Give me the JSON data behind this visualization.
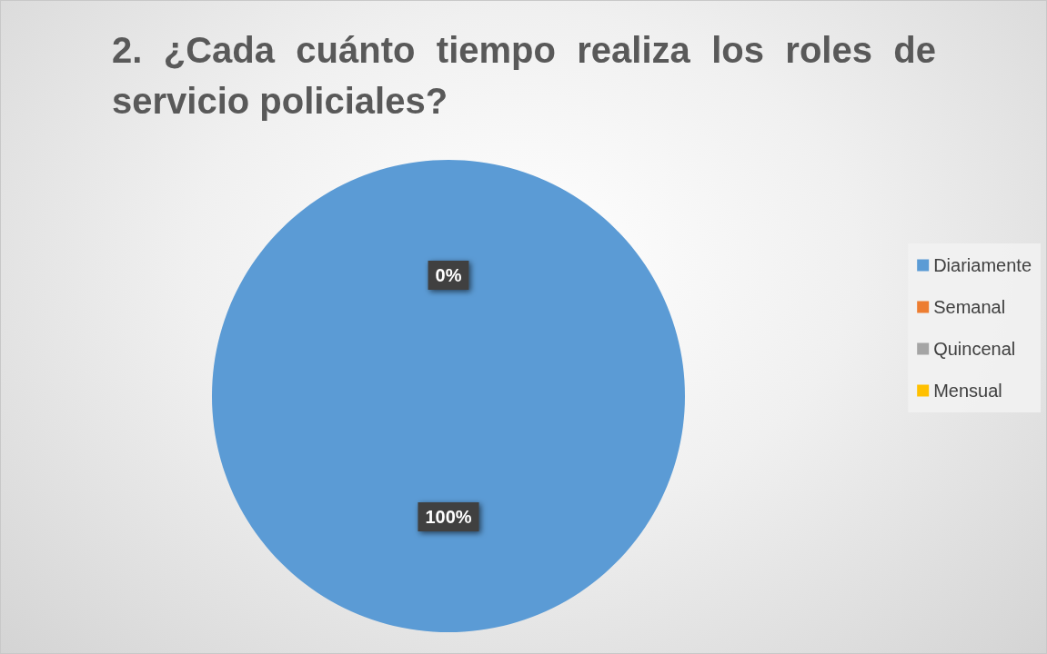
{
  "chart_data": {
    "type": "pie",
    "title": "2. ¿Cada cuánto tiempo realiza los roles de servicio policiales?",
    "categories": [
      "Diariamente",
      "Semanal",
      "Quincenal",
      "Mensual"
    ],
    "values": [
      100,
      0,
      0,
      0
    ],
    "colors": [
      "#5b9bd5",
      "#ed7d31",
      "#a5a5a5",
      "#ffc000"
    ],
    "value_labels": [
      "100%",
      "0%",
      null,
      null
    ],
    "legend": "right"
  }
}
